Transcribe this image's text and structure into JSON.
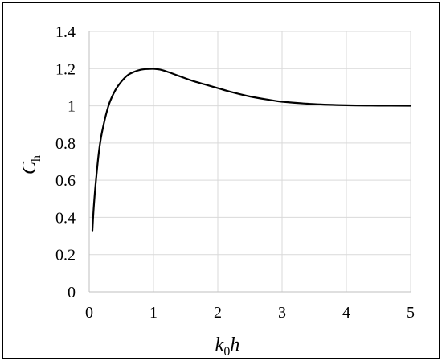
{
  "chart_data": {
    "type": "line",
    "title": "",
    "xlabel_main": "k",
    "xlabel_sub": "0",
    "xlabel_tail": "h",
    "ylabel_main": "C",
    "ylabel_sub": "h",
    "xlim": [
      0,
      5
    ],
    "ylim": [
      0,
      1.4
    ],
    "xticks": [
      "0",
      "1",
      "2",
      "3",
      "4",
      "5"
    ],
    "yticks": [
      "0",
      "0.2",
      "0.4",
      "0.6",
      "0.8",
      "1",
      "1.2",
      "1.4"
    ],
    "grid": true,
    "legend": "none",
    "line_color": "#000000",
    "grid_color": "#d9d9d9",
    "series": [
      {
        "x": [
          0.05,
          0.07,
          0.1,
          0.15,
          0.2,
          0.3,
          0.4,
          0.5,
          0.6,
          0.7,
          0.8,
          0.9,
          1.0,
          1.1,
          1.2,
          1.4,
          1.6,
          1.8,
          2.0,
          2.2,
          2.5,
          2.8,
          3.0,
          3.5,
          4.0,
          4.5,
          5.0
        ],
        "y": [
          0.33,
          0.45,
          0.58,
          0.75,
          0.86,
          1.0,
          1.08,
          1.13,
          1.165,
          1.183,
          1.194,
          1.198,
          1.199,
          1.195,
          1.185,
          1.16,
          1.135,
          1.115,
          1.095,
          1.075,
          1.05,
          1.032,
          1.022,
          1.009,
          1.003,
          1.001,
          1.0
        ]
      }
    ]
  }
}
